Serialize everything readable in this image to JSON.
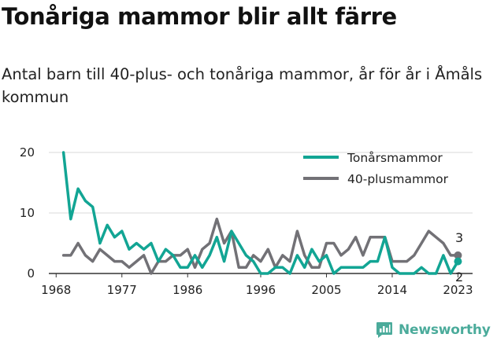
{
  "title": "Tonåriga mammor blir allt färre",
  "subtitle": "Antal barn till 40-plus- och tonåriga mammor, år för år i Åmåls kommun",
  "brand": "Newsworthy",
  "colors": {
    "teal": "#12a594",
    "gray": "#727176",
    "brand": "#4bab9b",
    "grid": "#d9d9d9"
  },
  "chart_data": {
    "type": "line",
    "x": [
      1969,
      1970,
      1971,
      1972,
      1973,
      1974,
      1975,
      1976,
      1977,
      1978,
      1979,
      1980,
      1981,
      1982,
      1983,
      1984,
      1985,
      1986,
      1987,
      1988,
      1989,
      1990,
      1991,
      1992,
      1993,
      1994,
      1995,
      1996,
      1997,
      1998,
      1999,
      2000,
      2001,
      2002,
      2003,
      2004,
      2005,
      2006,
      2007,
      2008,
      2009,
      2010,
      2011,
      2012,
      2013,
      2014,
      2015,
      2016,
      2017,
      2018,
      2019,
      2020,
      2021,
      2022,
      2023
    ],
    "series": [
      {
        "name": "Tonårsmammor",
        "color": "#12a594",
        "values": [
          20,
          9,
          14,
          12,
          11,
          5,
          8,
          6,
          7,
          4,
          5,
          4,
          5,
          2,
          4,
          3,
          1,
          1,
          3,
          1,
          3,
          6,
          2,
          7,
          5,
          3,
          2,
          0,
          0,
          1,
          1,
          0,
          3,
          1,
          4,
          2,
          3,
          0,
          1,
          1,
          1,
          1,
          2,
          2,
          6,
          1,
          0,
          0,
          0,
          1,
          0,
          0,
          3,
          0,
          2
        ]
      },
      {
        "name": "40-plusmammor",
        "color": "#727176",
        "values": [
          3,
          3,
          5,
          3,
          2,
          4,
          3,
          2,
          2,
          1,
          2,
          3,
          0,
          2,
          2,
          3,
          3,
          4,
          1,
          4,
          5,
          9,
          5,
          7,
          1,
          1,
          3,
          2,
          4,
          1,
          3,
          2,
          7,
          3,
          1,
          1,
          5,
          5,
          3,
          4,
          6,
          3,
          6,
          6,
          6,
          2,
          2,
          2,
          3,
          5,
          7,
          6,
          5,
          3,
          3
        ]
      }
    ],
    "xticks": [
      1968,
      1977,
      1986,
      1996,
      2005,
      2014,
      2023
    ],
    "yticks": [
      0,
      10,
      20
    ],
    "xlim": [
      1967,
      2025
    ],
    "ylim": [
      0,
      20
    ],
    "end_labels": [
      "2",
      "3"
    ],
    "legend_position": "top-right",
    "grid": "horizontal"
  }
}
